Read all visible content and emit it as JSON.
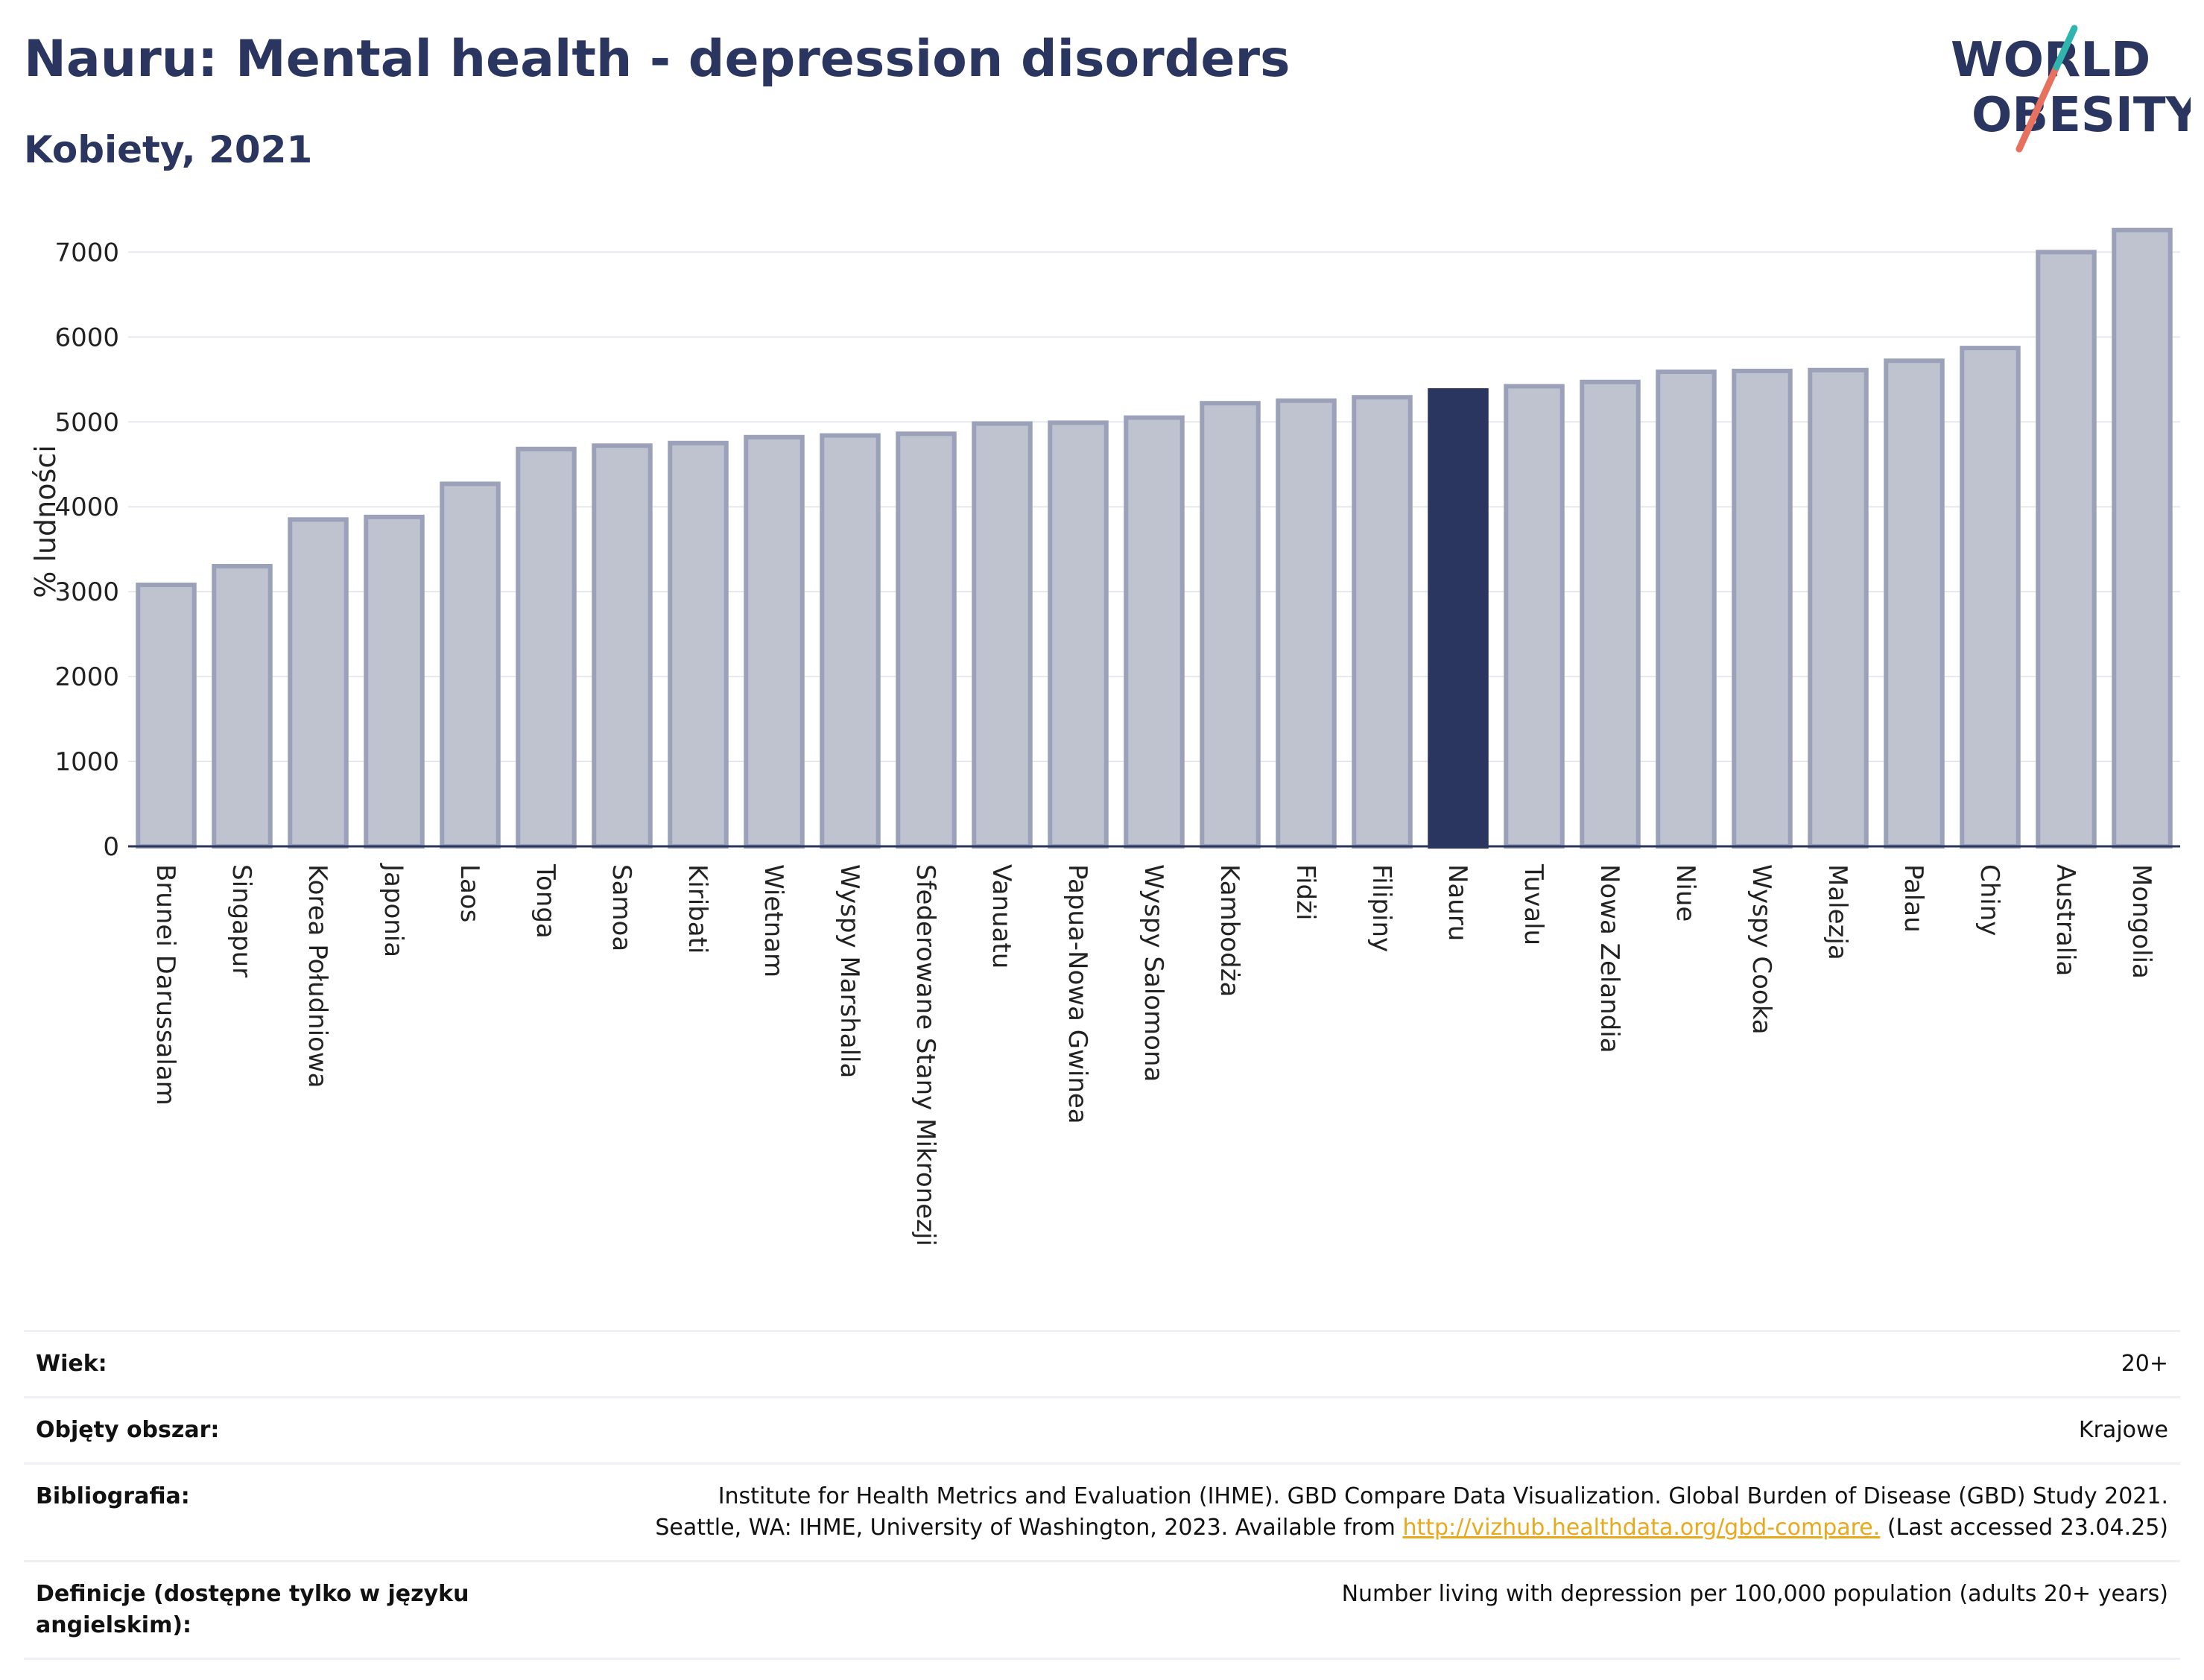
{
  "header": {
    "title": "Nauru: Mental health - depression disorders",
    "subtitle": "Kobiety, 2021"
  },
  "logo": {
    "line1": "WORLD",
    "line2": "OBESITY"
  },
  "colors": {
    "bar": "#bfc3d0",
    "bar_border": "#9ba1b8",
    "highlight": "#2a3560",
    "grid": "#e6e8ee",
    "axis": "#2a3560"
  },
  "chart_data": {
    "type": "bar",
    "ylabel": "% ludności",
    "xlabel": "",
    "ylim": [
      0,
      7600
    ],
    "yticks": [
      0,
      1000,
      2000,
      3000,
      4000,
      5000,
      6000,
      7000
    ],
    "highlight": "Nauru",
    "categories": [
      "Brunei Darussalam",
      "Singapur",
      "Korea Południowa",
      "Japonia",
      "Laos",
      "Tonga",
      "Samoa",
      "Kiribati",
      "Wietnam",
      "Wyspy Marshalla",
      "Sfederowane Stany Mikronezji",
      "Vanuatu",
      "Papua-Nowa Gwinea",
      "Wyspy Salomona",
      "Kambodża",
      "Fidżi",
      "Filipiny",
      "Nauru",
      "Tuvalu",
      "Nowa Zelandia",
      "Niue",
      "Wyspy Cooka",
      "Malezja",
      "Palau",
      "Chiny",
      "Australia",
      "Mongolia"
    ],
    "values": [
      3080,
      3300,
      3850,
      3880,
      4270,
      4680,
      4720,
      4750,
      4820,
      4840,
      4860,
      4980,
      4990,
      5050,
      5220,
      5250,
      5290,
      5370,
      5420,
      5470,
      5590,
      5600,
      5610,
      5720,
      5870,
      7000,
      7260
    ]
  },
  "meta": {
    "age": {
      "label": "Wiek:",
      "value": "20+"
    },
    "coverage": {
      "label": "Objęty obszar:",
      "value": "Krajowe"
    },
    "bibliography": {
      "label": "Bibliografia:",
      "line1": "Institute for Health Metrics and Evaluation (IHME). GBD Compare Data Visualization. Global Burden of Disease (GBD) Study 2021.",
      "line2_pre": "Seattle, WA: IHME, University of Washington, 2023. Available from ",
      "link": "http://vizhub.healthdata.org/gbd-compare.",
      "line2_post": " (Last accessed 23.04.25)"
    },
    "definitions": {
      "label": "Definicje (dostępne tylko w języku angielskim):",
      "value": "Number living with depression per 100,000 population (adults 20+ years)"
    }
  }
}
